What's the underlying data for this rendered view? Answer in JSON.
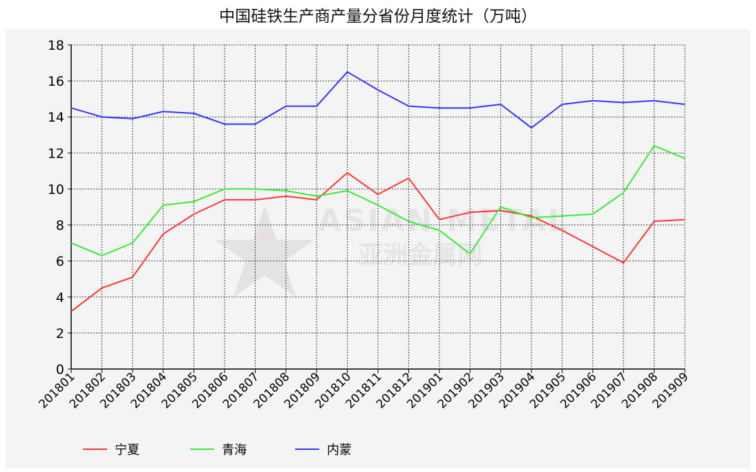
{
  "chart_data": {
    "type": "line",
    "title": "中国硅铁生产商产量分省份月度统计（万吨）",
    "xlabel": "",
    "ylabel": "",
    "ylim": [
      0,
      18
    ],
    "yticks": [
      "0",
      "2",
      "4",
      "6",
      "8",
      "10",
      "12",
      "14",
      "16",
      "18"
    ],
    "grid": true,
    "legend_position": "bottom-left",
    "categories": [
      "201801",
      "201802",
      "201803",
      "201804",
      "201805",
      "201806",
      "201807",
      "201808",
      "201809",
      "201810",
      "201811",
      "201812",
      "201901",
      "201902",
      "201903",
      "201904",
      "201905",
      "201906",
      "201907",
      "201908",
      "201909"
    ],
    "series": [
      {
        "name": "宁夏",
        "color": "#ff3333",
        "values": [
          3.2,
          4.5,
          5.1,
          7.5,
          8.6,
          9.4,
          9.4,
          9.6,
          9.4,
          10.9,
          9.7,
          10.6,
          8.3,
          8.7,
          8.8,
          8.5,
          7.7,
          6.8,
          5.9,
          8.2,
          8.3
        ]
      },
      {
        "name": "青海",
        "color": "#33ee33",
        "values": [
          7.0,
          6.3,
          7.0,
          9.1,
          9.3,
          10.0,
          10.0,
          9.9,
          9.6,
          9.9,
          9.1,
          8.2,
          7.7,
          6.4,
          9.0,
          8.4,
          8.5,
          8.6,
          9.8,
          12.4,
          11.7
        ]
      },
      {
        "name": "内蒙",
        "color": "#3333ff",
        "values": [
          14.5,
          14.0,
          13.9,
          14.3,
          14.2,
          13.6,
          13.6,
          14.6,
          14.6,
          16.5,
          15.5,
          14.6,
          14.5,
          14.5,
          14.7,
          13.4,
          14.7,
          14.9,
          14.8,
          14.9,
          14.7
        ]
      }
    ]
  },
  "watermark": {
    "logo_text": "AM",
    "line1": "ASIAN METAL",
    "line2": "亚洲金属网"
  }
}
